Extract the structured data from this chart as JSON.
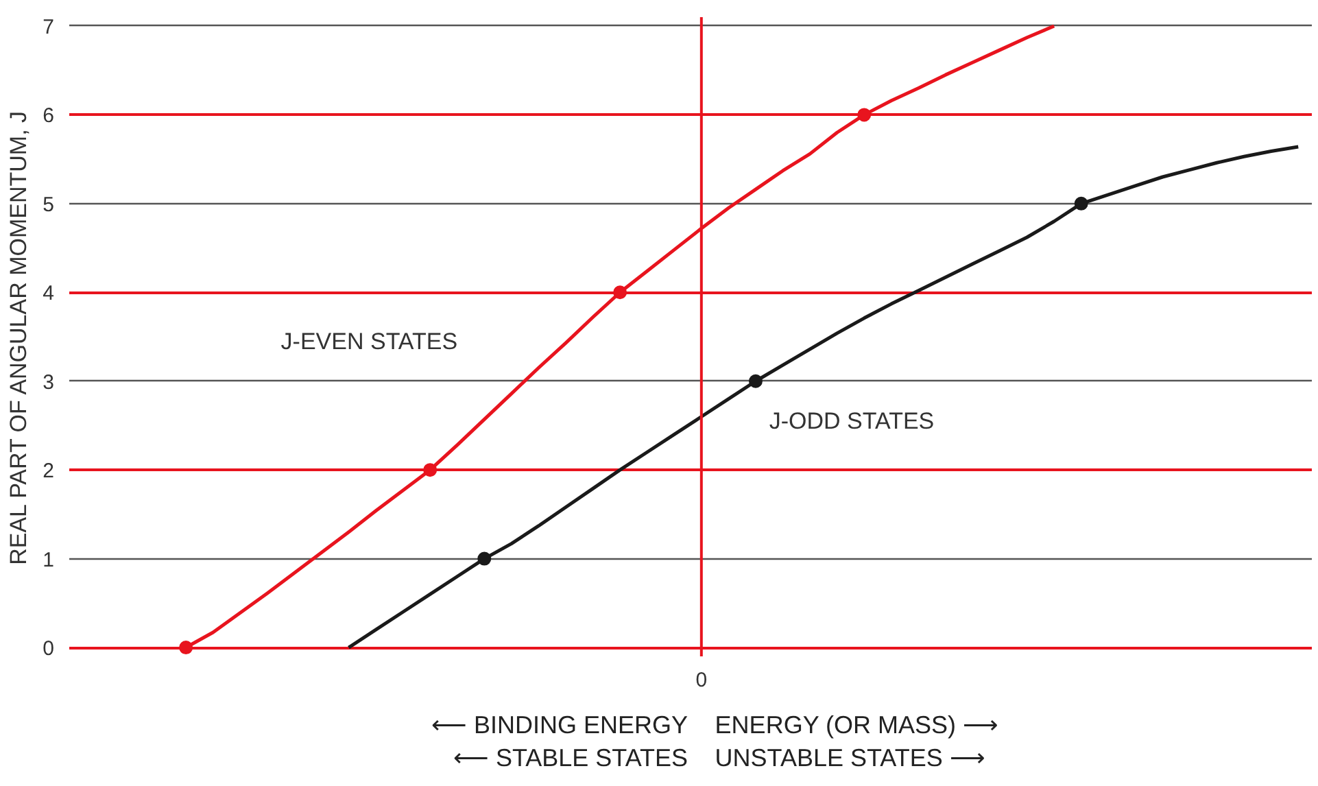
{
  "chart_data": {
    "type": "line",
    "ylabel": "REAL PART OF ANGULAR MOMENTUM, J",
    "categories": [
      null,
      null,
      null,
      null,
      null,
      null,
      null,
      null,
      null,
      null,
      null,
      null,
      null,
      null,
      null,
      null,
      null,
      null,
      null,
      null,
      null,
      null,
      null,
      "0",
      null,
      null,
      null,
      null,
      null,
      null,
      null,
      null,
      null,
      null,
      null,
      null,
      null,
      null,
      null,
      null,
      null,
      null,
      null,
      null,
      null,
      null
    ],
    "series": [
      {
        "name": "J-EVEN STATES",
        "color": "#e8141e",
        "values": [
          null,
          null,
          null,
          null,
          0,
          0.17,
          0.39,
          0.61,
          0.84,
          1.07,
          1.3,
          1.54,
          1.77,
          2.0,
          2.28,
          2.57,
          2.86,
          3.15,
          3.43,
          3.72,
          4.0,
          4.24,
          4.48,
          4.72,
          4.95,
          5.16,
          5.37,
          5.56,
          5.8,
          6.0,
          6.16,
          6.3,
          6.45,
          6.59,
          6.73,
          6.87,
          7.0,
          null,
          null,
          null,
          null,
          null,
          null,
          null,
          null,
          null
        ]
      },
      {
        "name": "J-ODD STATES",
        "color": "#1a1a1a",
        "values": [
          null,
          null,
          null,
          null,
          null,
          null,
          null,
          null,
          null,
          null,
          0,
          0.2,
          0.4,
          0.6,
          0.8,
          1.0,
          1.17,
          1.37,
          1.58,
          1.79,
          2.0,
          2.2,
          2.4,
          2.6,
          2.8,
          3.0,
          3.18,
          3.36,
          3.54,
          3.71,
          3.87,
          4.02,
          4.17,
          4.32,
          4.47,
          4.62,
          4.8,
          5.0,
          5.1,
          5.2,
          5.3,
          5.38,
          5.46,
          5.53,
          5.59,
          5.64
        ]
      },
      {
        "color": "#e8141e",
        "type": "scatter",
        "marker": "circle",
        "values": [
          null,
          null,
          null,
          null,
          0,
          null,
          null,
          null,
          null,
          null,
          null,
          null,
          null,
          2,
          null,
          null,
          null,
          null,
          null,
          null,
          4,
          null,
          null,
          null,
          null,
          null,
          null,
          null,
          null,
          6,
          null,
          null,
          null,
          null,
          null,
          null,
          null,
          null,
          null,
          null,
          null,
          null,
          null,
          null,
          null,
          null
        ]
      },
      {
        "color": "#1a1a1a",
        "type": "scatter",
        "marker": "circle",
        "values": [
          null,
          null,
          null,
          null,
          null,
          null,
          null,
          null,
          null,
          null,
          null,
          null,
          null,
          null,
          null,
          1,
          null,
          null,
          null,
          null,
          null,
          null,
          null,
          null,
          null,
          3,
          null,
          null,
          null,
          null,
          null,
          null,
          null,
          null,
          null,
          null,
          null,
          5,
          null,
          null,
          null,
          null,
          null,
          null,
          null,
          null
        ]
      }
    ],
    "ylim": [
      -0.1,
      7.1
    ],
    "yticks": [
      0,
      1,
      2,
      3,
      4,
      5,
      6,
      7
    ],
    "grid": "y",
    "line_style": "solid",
    "ref_lines": [
      {
        "axis": "x",
        "value": "0",
        "color": "#e8141e"
      }
    ],
    "annotations": [
      "⟵ BINDING ENERGY",
      "ENERGY (OR MASS) ⟶",
      "⟵ STABLE STATES",
      "UNSTABLE STATES ⟶"
    ]
  }
}
